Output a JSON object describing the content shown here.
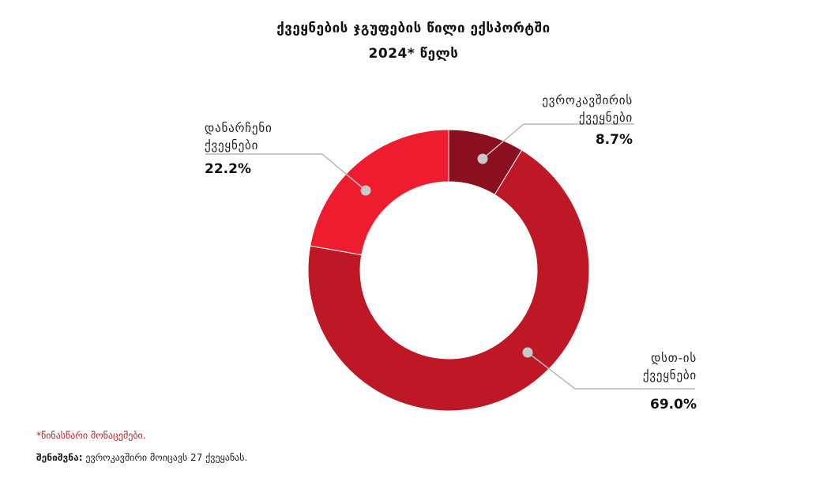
{
  "chart_data": {
    "type": "pie",
    "variant": "donut",
    "title": "ქვეყნების ჯგუფების წილი ექსპორტში",
    "subtitle": "2024* წელს",
    "categories": [
      "ევროკავშირის ქვეყნები",
      "დსთ-ის ქვეყნები",
      "დანარჩენი ქვეყნები"
    ],
    "values": [
      8.7,
      69.0,
      22.2
    ],
    "value_labels": [
      "8.7%",
      "69.0%",
      "22.2%"
    ],
    "label_lines": [
      [
        "ევროკავშირის",
        "ქვეყნები"
      ],
      [
        "დსთ-ის",
        "ქვეყნები"
      ],
      [
        "დანარჩენი",
        "ქვეყნები"
      ]
    ],
    "colors": [
      "#8a1020",
      "#be1826",
      "#ed1c2e"
    ],
    "legend": "none"
  },
  "footnotes": {
    "preliminary": "*წინასწარი მონაცემები.",
    "note_label": "შენიშვნა:",
    "note_text": " ევროკავშირი მოიცავს 27 ქვეყანას."
  },
  "colors": {
    "leader_line": "#b8b8b8",
    "marker": "#c9c9c9",
    "footnote_accent": "#c0202d"
  }
}
